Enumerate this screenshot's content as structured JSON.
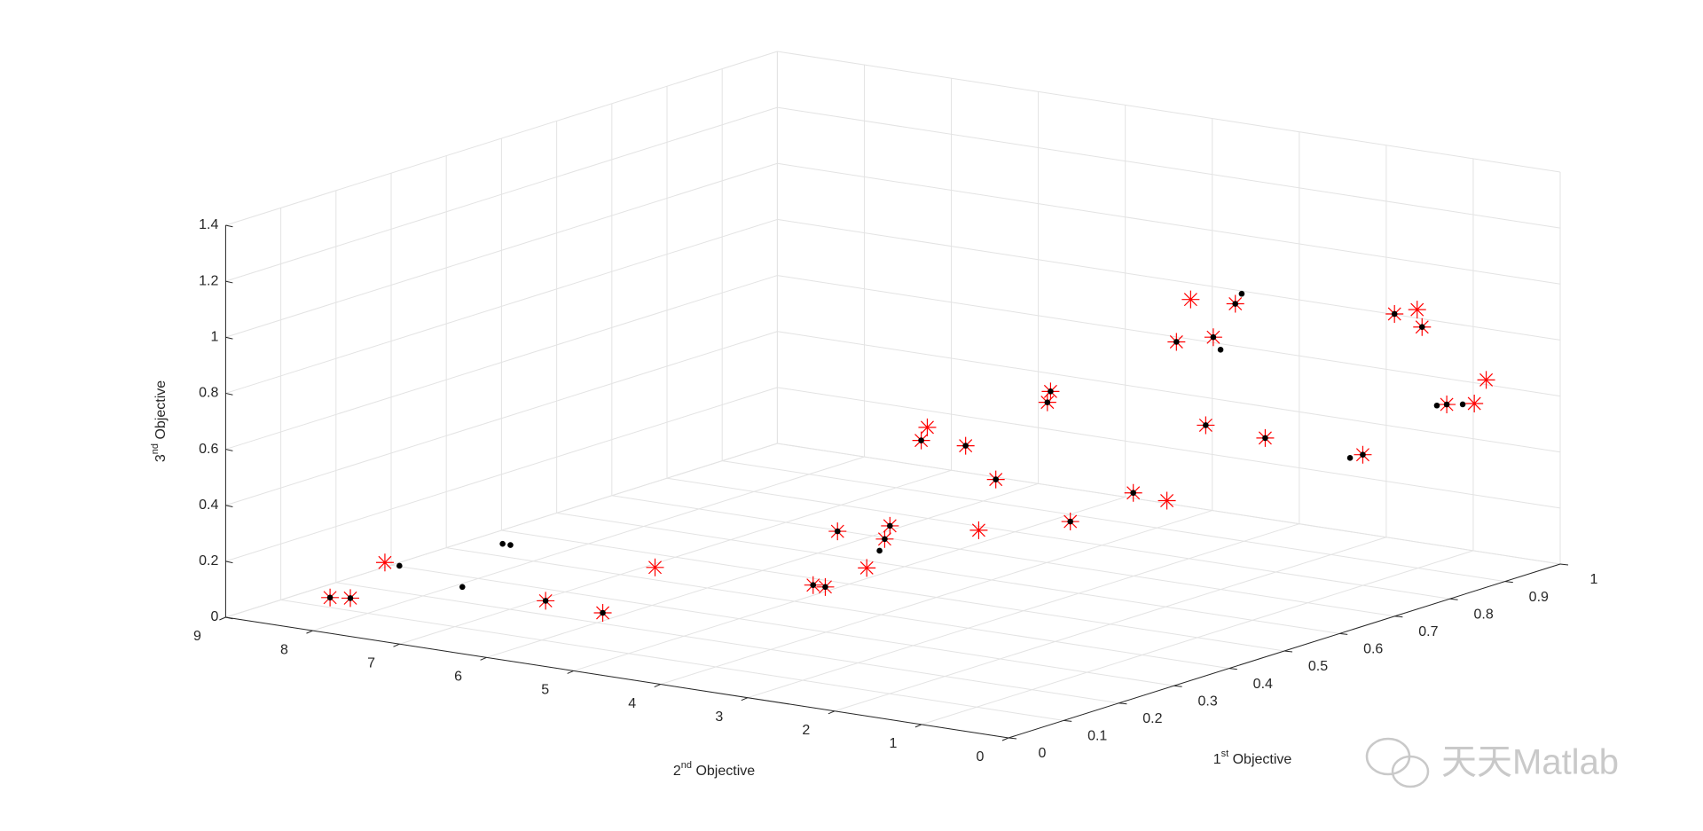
{
  "chart_data": {
    "type": "scatter3d",
    "xlabel": [
      "1",
      "st",
      " Objective"
    ],
    "ylabel": [
      "2",
      "nd",
      " Objective"
    ],
    "zlabel": [
      "3",
      "nd",
      " Objective"
    ],
    "xlim": [
      0,
      1
    ],
    "ylim": [
      0,
      9
    ],
    "zlim": [
      0,
      1.4
    ],
    "xticks": [
      0,
      0.1,
      0.2,
      0.3,
      0.4,
      0.5,
      0.6,
      0.7,
      0.8,
      0.9,
      1
    ],
    "yticks": [
      0,
      1,
      2,
      3,
      4,
      5,
      6,
      7,
      8,
      9
    ],
    "zticks": [
      0,
      0.2,
      0.4,
      0.6,
      0.8,
      1,
      1.2,
      1.4
    ],
    "grid": true,
    "series": [
      {
        "color": "#ff0000",
        "marker": "star",
        "x": [
          0.03,
          0.04,
          0.09,
          0.2,
          0.22,
          0.34,
          0.42,
          0.42,
          0.48,
          0.41,
          0.37,
          0.37,
          0.34,
          0.34,
          0.4,
          0.46,
          0.45,
          0.4,
          0.39,
          0.44,
          0.48,
          0.47,
          0.44,
          0.45,
          0.46,
          0.48,
          0.46,
          0.5,
          0.71,
          0.84,
          0.87,
          0.86,
          0.9,
          0.92,
          0.91
        ],
        "y": [
          7.99,
          7.82,
          7.74,
          6.59,
          6.06,
          6.22,
          4.91,
          4.77,
          5.01,
          4.23,
          3.77,
          3.71,
          3.16,
          3.09,
          3.03,
          3.26,
          3.0,
          2.09,
          1.99,
          2.08,
          1.61,
          1.16,
          0.86,
          0.76,
          0.65,
          0.69,
          0.31,
          0.22,
          0.43,
          0.89,
          0.82,
          0.7,
          0.67,
          0.48,
          0.28
        ],
        "z": [
          0.1,
          0.1,
          0.2,
          0.05,
          0.02,
          0.1,
          0.05,
          0.05,
          0.2,
          0.15,
          0.3,
          0.35,
          0.7,
          0.75,
          0.65,
          0.3,
          0.5,
          0.85,
          0.9,
          0.4,
          0.5,
          0.5,
          1.1,
          1.25,
          0.8,
          1.1,
          1.25,
          0.75,
          0.55,
          0.95,
          0.95,
          0.9,
          0.6,
          0.6,
          0.7
        ]
      },
      {
        "color": "#000000",
        "marker": "dot",
        "x": [
          0.03,
          0.04,
          0.2,
          0.22,
          0.42,
          0.42,
          0.48,
          0.37,
          0.37,
          0.34,
          0.4,
          0.45,
          0.4,
          0.39,
          0.44,
          0.48,
          0.44,
          0.46,
          0.48,
          0.46,
          0.5,
          0.71,
          0.84,
          0.86,
          0.9,
          0.14,
          0.07,
          0.07,
          0.15,
          0.43,
          0.91,
          0.47,
          0.49,
          0.69,
          0.89
        ],
        "y": [
          7.99,
          7.82,
          6.59,
          6.06,
          4.91,
          4.77,
          5.01,
          3.77,
          3.71,
          3.16,
          3.03,
          3.0,
          2.09,
          1.99,
          2.08,
          1.61,
          0.86,
          0.65,
          0.69,
          0.31,
          0.22,
          0.43,
          0.89,
          0.7,
          0.67,
          7.89,
          6.26,
          6.17,
          7.23,
          4.21,
          0.55,
          0.3,
          0.67,
          0.45,
          0.72
        ],
        "z": [
          0.1,
          0.1,
          0.05,
          0.02,
          0.05,
          0.05,
          0.2,
          0.3,
          0.35,
          0.7,
          0.65,
          0.5,
          0.85,
          0.9,
          0.4,
          0.5,
          1.1,
          0.8,
          1.1,
          1.25,
          0.75,
          0.55,
          0.95,
          0.9,
          0.6,
          0.15,
          0.35,
          0.35,
          0.1,
          0.2,
          0.6,
          1.28,
          1.05,
          0.55,
          0.6
        ]
      }
    ],
    "watermark": "天天Matlab"
  }
}
